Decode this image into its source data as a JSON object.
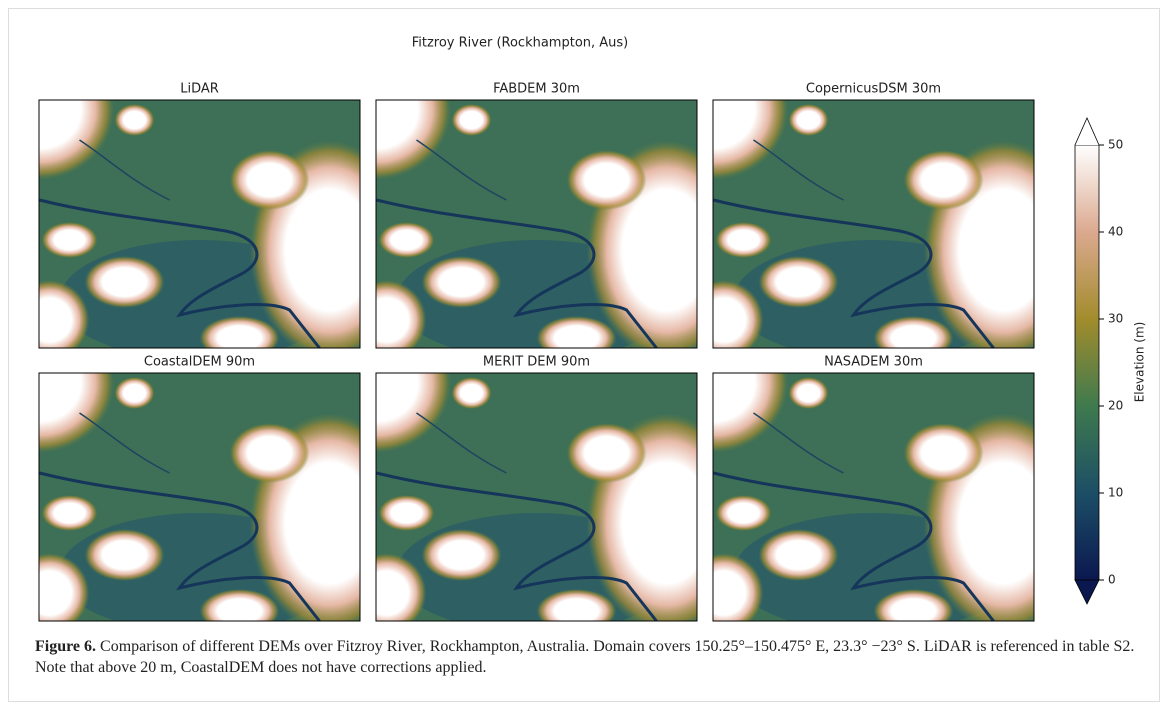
{
  "figure": {
    "title": "Fitzroy River (Rockhampton, Aus)",
    "panels": [
      "LiDAR",
      "FABDEM 30m",
      "CopernicusDSM 30m",
      "CoastalDEM 90m",
      "MERIT DEM 90m",
      "NASADEM 30m"
    ],
    "colorbar": {
      "label": "Elevation (m)",
      "lim": [
        0,
        50
      ],
      "ticks": [
        0,
        10,
        20,
        30,
        40,
        50
      ]
    }
  },
  "caption": {
    "label": "Figure 6.",
    "text": "Comparison of different DEMs over Fitzroy River, Rockhampton, Australia. Domain covers 150.25°–150.475° E, 23.3° −23° S. LiDAR is referenced in table S2. Note that above 20 m, CoastalDEM does not have corrections applied."
  }
}
